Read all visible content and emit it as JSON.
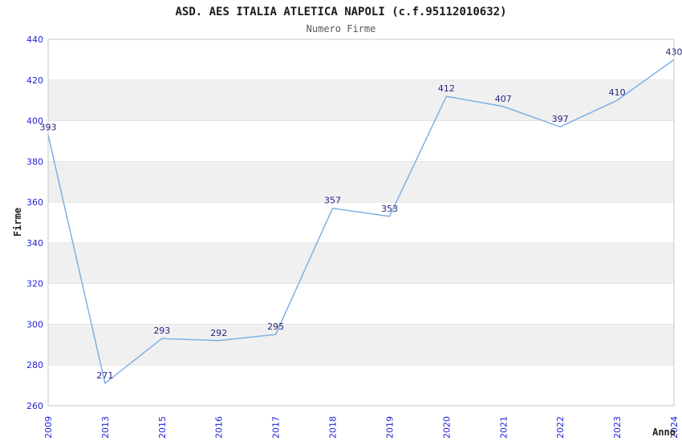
{
  "chart_data": {
    "type": "line",
    "title": "ASD. AES ITALIA ATLETICA NAPOLI (c.f.95112010632)",
    "subtitle": "Numero Firme",
    "xlabel": "Anno",
    "ylabel": "Firme",
    "categories": [
      "2009",
      "2013",
      "2015",
      "2016",
      "2017",
      "2018",
      "2019",
      "2020",
      "2021",
      "2022",
      "2023",
      "2024"
    ],
    "values": [
      393,
      271,
      293,
      292,
      295,
      357,
      353,
      412,
      407,
      397,
      410,
      430
    ],
    "ylim": [
      260,
      440
    ],
    "ytick_step": 20,
    "yticks": [
      260,
      280,
      300,
      320,
      340,
      360,
      380,
      400,
      420,
      440
    ],
    "grid": "alternating-horizontal-bands",
    "legend": "none",
    "data_labels_shown": true,
    "x_tick_rotation_deg": -90
  },
  "colors": {
    "series_line": "#7fb0e4",
    "axis_tick_label": "#2424d6",
    "data_label": "#26267f",
    "band_fill": "#f0f0f0",
    "band_edge": "#e4e4e4",
    "plot_border": "#c9c9c9",
    "title": "#1a1a1a",
    "subtitle": "#585858",
    "axis_title": "#222222",
    "background": "#ffffff"
  }
}
